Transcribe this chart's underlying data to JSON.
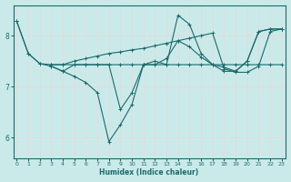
{
  "xlabel": "Humidex (Indice chaleur)",
  "bg_color": "#caeaea",
  "grid_color": "#e8d8d8",
  "line_color": "#1a6b6b",
  "xlim": [
    0,
    23
  ],
  "ylim": [
    5.6,
    8.6
  ],
  "yticks": [
    6,
    7,
    8
  ],
  "xticks": [
    0,
    1,
    2,
    3,
    4,
    5,
    6,
    7,
    8,
    9,
    10,
    11,
    12,
    13,
    14,
    15,
    16,
    17,
    18,
    19,
    20,
    21,
    22,
    23
  ],
  "line1_x": [
    0,
    1,
    2,
    3,
    4,
    5,
    6,
    7,
    8,
    9,
    10,
    11,
    12,
    13,
    14,
    15,
    16,
    17,
    18,
    19,
    20,
    21,
    22,
    23
  ],
  "line1_y": [
    8.28,
    7.65,
    7.45,
    7.43,
    7.43,
    7.43,
    7.43,
    7.43,
    7.43,
    7.43,
    7.43,
    7.43,
    7.43,
    7.43,
    7.43,
    7.43,
    7.43,
    7.43,
    7.43,
    7.43,
    7.43,
    7.43,
    7.43,
    7.43
  ],
  "line2_x": [
    0,
    1,
    2,
    3,
    4,
    5,
    6,
    7,
    8,
    9,
    10,
    11,
    12,
    13,
    14,
    15,
    16,
    17,
    18,
    19,
    20,
    21,
    22,
    23
  ],
  "line2_y": [
    8.28,
    7.65,
    7.45,
    7.4,
    7.3,
    7.2,
    7.08,
    6.88,
    5.92,
    6.25,
    6.65,
    7.43,
    7.5,
    7.43,
    8.4,
    8.22,
    7.65,
    7.43,
    7.38,
    7.3,
    7.5,
    8.08,
    8.13,
    8.13
  ],
  "line3_x": [
    3,
    4,
    5,
    6,
    7,
    8,
    9,
    10,
    11,
    12,
    13,
    14,
    15,
    16,
    17,
    18,
    19,
    20,
    21,
    22,
    23
  ],
  "line3_y": [
    7.4,
    7.3,
    7.43,
    7.43,
    7.43,
    7.43,
    6.55,
    6.88,
    7.43,
    7.43,
    7.55,
    7.9,
    7.78,
    7.58,
    7.43,
    7.3,
    7.3,
    7.5,
    8.08,
    8.13,
    8.13
  ],
  "line4_x": [
    3,
    4,
    5,
    6,
    7,
    8,
    9,
    10,
    11,
    12,
    13,
    14,
    15,
    16,
    17,
    18,
    19,
    20,
    21,
    22,
    23
  ],
  "line4_y": [
    7.43,
    7.43,
    7.5,
    7.55,
    7.6,
    7.65,
    7.68,
    7.72,
    7.75,
    7.8,
    7.85,
    7.9,
    7.95,
    8.0,
    8.05,
    7.35,
    7.28,
    7.28,
    7.4,
    8.08,
    8.13
  ]
}
